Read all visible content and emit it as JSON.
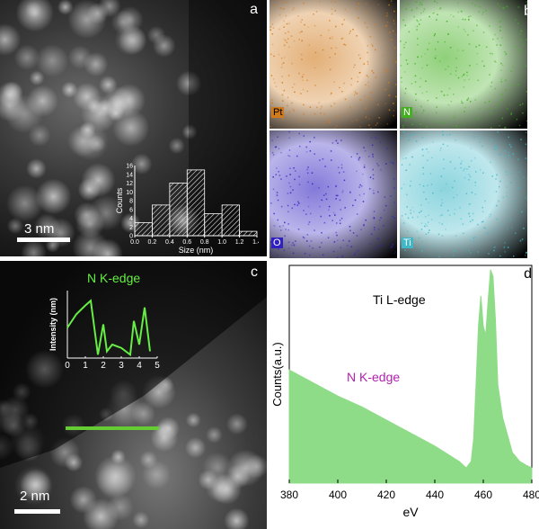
{
  "panels": {
    "a": {
      "letter": "a",
      "scale_bar": "3 nm"
    },
    "b": {
      "letter": "b",
      "maps": [
        {
          "element": "Pt",
          "color": "#d07a1c"
        },
        {
          "element": "N",
          "color": "#44b020"
        },
        {
          "element": "O",
          "color": "#3020c0"
        },
        {
          "element": "Ti",
          "color": "#40b8c8"
        }
      ]
    },
    "c": {
      "letter": "c",
      "scale_bar": "2 nm"
    },
    "d": {
      "letter": "d",
      "title": "Ti L-edge",
      "annotation": "N K-edge"
    }
  },
  "chart_data": [
    {
      "type": "bar",
      "panel": "a",
      "xlabel": "Size (nm)",
      "ylabel": "Counts",
      "x_ticks": [
        "0.0",
        "0.2",
        "0.4",
        "0.6",
        "0.8",
        "1.0",
        "1.2",
        "1.4"
      ],
      "y_ticks": [
        "0",
        "2",
        "4",
        "6",
        "8",
        "10",
        "12",
        "14",
        "16"
      ],
      "bin_edges": [
        0.0,
        0.2,
        0.4,
        0.6,
        0.8,
        1.0,
        1.2,
        1.4
      ],
      "values": [
        3,
        7,
        12,
        15,
        5,
        7,
        1
      ],
      "xlim": [
        0,
        1.4
      ],
      "ylim": [
        0,
        16
      ]
    },
    {
      "type": "line",
      "panel": "c",
      "title": "N K-edge",
      "xlabel": "",
      "ylabel": "Intensity (nm)",
      "x_ticks": [
        "0",
        "1",
        "2",
        "3",
        "4",
        "5"
      ],
      "x": [
        0,
        0.5,
        1.0,
        1.3,
        1.7,
        2.0,
        2.2,
        2.5,
        3.0,
        3.5,
        3.7,
        4.0,
        4.3,
        4.6
      ],
      "values": [
        0.45,
        0.65,
        0.78,
        0.85,
        0.05,
        0.5,
        0.1,
        0.2,
        0.15,
        0.05,
        0.55,
        0.2,
        0.75,
        0.1
      ],
      "xlim": [
        0,
        5
      ],
      "ylim": [
        0,
        1
      ],
      "color": "#66ee44"
    },
    {
      "type": "area",
      "panel": "d",
      "xlabel": "eV",
      "ylabel": "Counts(a.u.)",
      "x_ticks": [
        "380",
        "400",
        "420",
        "440",
        "460",
        "480"
      ],
      "x": [
        380,
        390,
        400,
        410,
        420,
        430,
        440,
        450,
        453,
        455,
        456,
        457,
        458,
        459,
        460,
        461,
        462,
        463,
        464,
        465,
        466,
        468,
        470,
        472,
        475,
        478,
        480
      ],
      "values": [
        0.52,
        0.46,
        0.4,
        0.35,
        0.29,
        0.23,
        0.17,
        0.1,
        0.07,
        0.1,
        0.2,
        0.45,
        0.72,
        0.86,
        0.72,
        0.68,
        0.84,
        0.98,
        0.95,
        0.75,
        0.45,
        0.3,
        0.22,
        0.14,
        0.1,
        0.08,
        0.07
      ],
      "xlim": [
        380,
        480
      ],
      "ylim": [
        0,
        1
      ],
      "color": "#8fdc88"
    }
  ]
}
